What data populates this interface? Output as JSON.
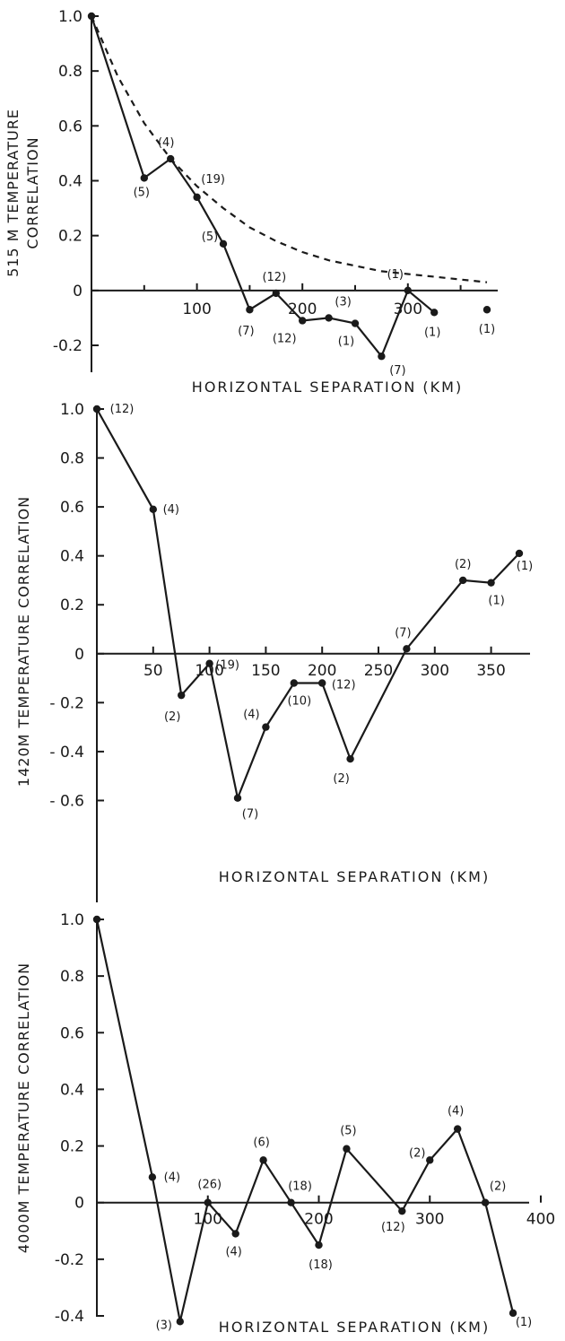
{
  "chart_data": [
    {
      "type": "line",
      "ylabel_lines": [
        "515 M TEMPERATURE",
        "CORRELATION"
      ],
      "xlabel": "HORIZONTAL SEPARATION (KM)",
      "xlim": [
        0,
        380
      ],
      "ylim": [
        -0.2,
        1.0
      ],
      "xticks": [
        100,
        200,
        300
      ],
      "xtick_labels": [
        "100",
        "200",
        "300"
      ],
      "xminor": [
        50,
        150,
        250,
        350
      ],
      "yticks": [
        1.0,
        0.8,
        0.6,
        0.4,
        0.2,
        0,
        -0.2
      ],
      "ytick_labels": [
        "1.0",
        "0.8",
        "0.6",
        "0.4",
        "0.2",
        "0",
        "-0.2"
      ],
      "series": [
        {
          "x": [
            0,
            50,
            75,
            100,
            125,
            150,
            175,
            200,
            225,
            250,
            275,
            300,
            325
          ],
          "y": [
            1.0,
            0.41,
            0.48,
            0.34,
            0.17,
            -0.07,
            -0.01,
            -0.11,
            -0.1,
            -0.12,
            -0.24,
            -0.0,
            -0.08
          ],
          "counts": [
            "",
            "(5)",
            "(4)",
            "(19)",
            "(5)",
            "(7)",
            "(12)",
            "(12)",
            "(3)",
            "(1)",
            "(7)",
            "(1)",
            "(1)"
          ]
        },
        {
          "x": [
            375
          ],
          "y": [
            -0.07
          ],
          "counts": [
            "(1)"
          ]
        }
      ],
      "reference_curve": {
        "style": "dashed",
        "x": [
          0,
          25,
          50,
          75,
          100,
          125,
          150,
          175,
          200,
          225,
          250,
          275,
          300,
          325,
          350,
          375
        ],
        "y": [
          1.0,
          0.78,
          0.61,
          0.48,
          0.38,
          0.3,
          0.23,
          0.18,
          0.14,
          0.11,
          0.09,
          0.07,
          0.06,
          0.05,
          0.04,
          0.03
        ]
      },
      "grid": false
    },
    {
      "type": "line",
      "ylabel_lines": [
        "1420M TEMPERATURE CORRELATION"
      ],
      "xlabel": "HORIZONTAL SEPARATION (KM)",
      "xlim": [
        0,
        380
      ],
      "ylim": [
        -0.8,
        1.0
      ],
      "xticks": [
        50,
        100,
        150,
        200,
        250,
        300,
        350
      ],
      "xtick_labels": [
        "50",
        "100",
        "150",
        "200",
        "250",
        "300",
        "350"
      ],
      "xminor": [],
      "yticks": [
        1.0,
        0.8,
        0.6,
        0.4,
        0.2,
        0,
        -0.2,
        -0.4,
        -0.6
      ],
      "ytick_labels": [
        "1.0",
        "0.8",
        "0.6",
        "0.4",
        "0.2",
        "0",
        "- 0.2",
        "- 0.4",
        "- 0.6"
      ],
      "series": [
        {
          "x": [
            0,
            50,
            75,
            100,
            125,
            150,
            175,
            200,
            225,
            275,
            325,
            350,
            375
          ],
          "y": [
            1.0,
            0.59,
            -0.17,
            -0.04,
            -0.59,
            -0.3,
            -0.12,
            -0.12,
            -0.43,
            0.02,
            0.3,
            0.29,
            0.41
          ],
          "counts": [
            "(12)",
            "(4)",
            "(2)",
            "(19)",
            "(7)",
            "(4)",
            "(10)",
            "(12)",
            "(2)",
            "(7)",
            "(2)",
            "(1)",
            "(1)"
          ]
        }
      ],
      "grid": false
    },
    {
      "type": "line",
      "ylabel_lines": [
        "4000M TEMPERATURE CORRELATION"
      ],
      "xlabel": "HORIZONTAL SEPARATION (KM)",
      "xlim": [
        0,
        400
      ],
      "ylim": [
        -0.4,
        1.0
      ],
      "xticks": [
        100,
        200,
        300,
        400
      ],
      "xtick_labels": [
        "100",
        "200",
        "300",
        "400"
      ],
      "xminor": [],
      "yticks": [
        1.0,
        0.8,
        0.6,
        0.4,
        0.2,
        0,
        -0.2,
        -0.4
      ],
      "ytick_labels": [
        "1.0",
        "0.8",
        "0.6",
        "0.4",
        "0.2",
        "0",
        "-0.2",
        "-0.4"
      ],
      "series": [
        {
          "x": [
            0,
            50,
            75,
            100,
            125,
            150,
            175,
            200,
            225,
            275,
            300,
            325,
            350,
            375
          ],
          "y": [
            1.0,
            0.09,
            -0.42,
            0.0,
            -0.11,
            0.15,
            0.0,
            -0.15,
            0.19,
            -0.03,
            0.15,
            0.26,
            0.0,
            -0.39
          ],
          "counts": [
            "",
            "(4)",
            "(3)",
            "(26)",
            "(4)",
            "(6)",
            "(18)",
            "(18)",
            "(5)",
            "(12)",
            "(2)",
            "(4)",
            "(2)",
            "(1)"
          ]
        }
      ],
      "grid": false
    }
  ]
}
